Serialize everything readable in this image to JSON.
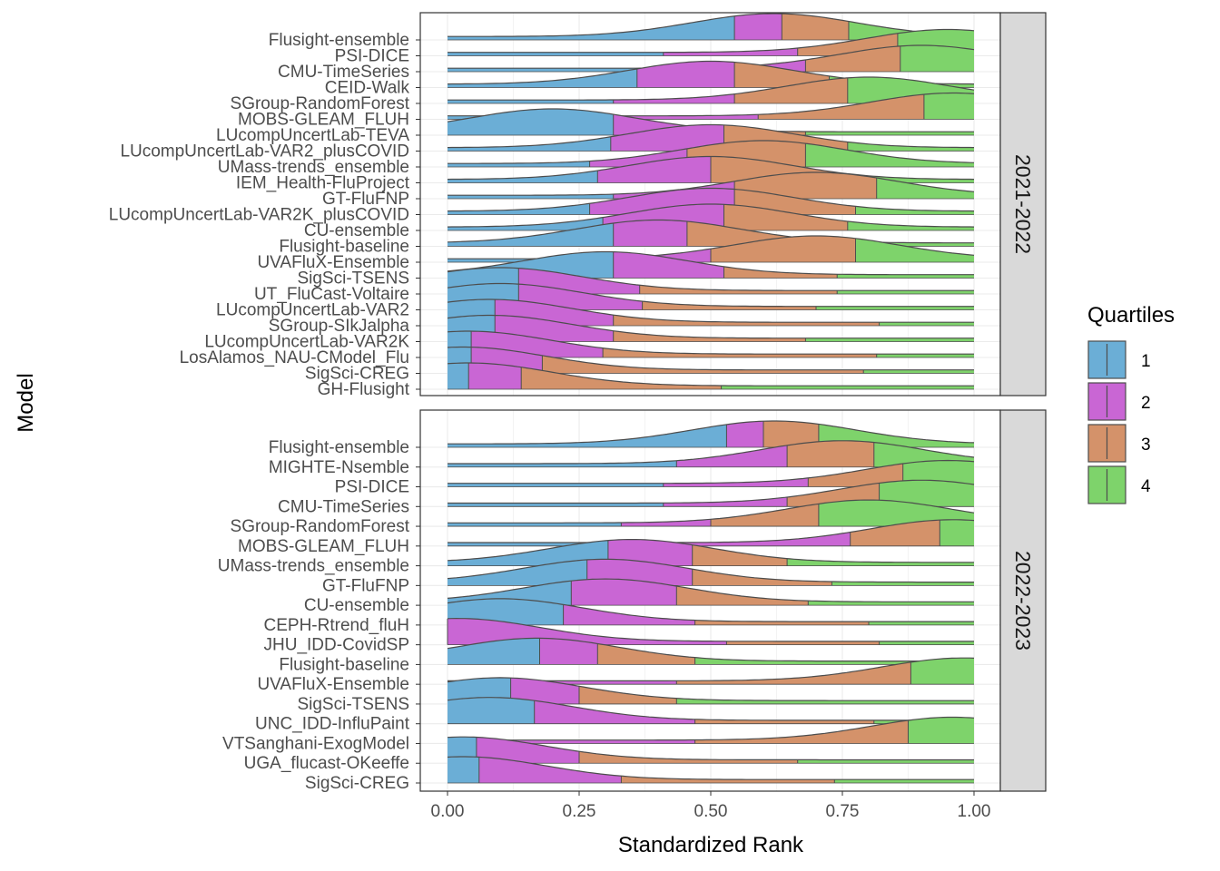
{
  "chart_data": {
    "type": "density-ridgeline",
    "xlabel": "Standardized Rank",
    "ylabel": "Model",
    "xlim": [
      0,
      1
    ],
    "x_ticks": [
      "0.00",
      "0.25",
      "0.50",
      "0.75",
      "1.00"
    ],
    "grid": true,
    "legend": {
      "title": "Quartiles",
      "position": "right",
      "entries": [
        {
          "label": "1",
          "color": "#6baed6"
        },
        {
          "label": "2",
          "color": "#c966d4"
        },
        {
          "label": "3",
          "color": "#d4926a"
        },
        {
          "label": "4",
          "color": "#7ed36b"
        }
      ]
    },
    "panels": [
      {
        "season": "2021-2022",
        "rows": [
          {
            "model": "Flusight-ensemble",
            "mode": 0.62,
            "q": [
              0.545,
              0.635,
              0.762
            ]
          },
          {
            "model": "PSI-DICE",
            "mode": 0.95,
            "q": [
              0.41,
              0.665,
              0.855
            ]
          },
          {
            "model": "CMU-TimeSeries",
            "mode": 0.9,
            "q": [
              0.41,
              0.68,
              0.86
            ]
          },
          {
            "model": "CEID-Walk",
            "mode": 0.5,
            "q": [
              0.36,
              0.545,
              0.725
            ]
          },
          {
            "model": "SGroup-RandomForest",
            "mode": 0.8,
            "q": [
              0.315,
              0.545,
              0.76
            ]
          },
          {
            "model": "MOBS-GLEAM_FLUH",
            "mode": 0.96,
            "q": [
              0.225,
              0.59,
              0.905
            ]
          },
          {
            "model": "LUcompUncertLab-TEVA",
            "mode": 0.2,
            "q": [
              0.315,
              0.5,
              0.68
            ]
          },
          {
            "model": "LUcompUncertLab-VAR2_plusCOVID",
            "mode": 0.5,
            "q": [
              0.31,
              0.525,
              0.76
            ]
          },
          {
            "model": "UMass-trends_ensemble",
            "mode": 0.6,
            "q": [
              0.27,
              0.455,
              0.68
            ]
          },
          {
            "model": "IEM_Health-FluProject",
            "mode": 0.5,
            "q": [
              0.285,
              0.5,
              0.755
            ]
          },
          {
            "model": "GT-FluFNP",
            "mode": 0.7,
            "q": [
              0.315,
              0.545,
              0.815
            ]
          },
          {
            "model": "LUcompUncertLab-VAR2K_plusCOVID",
            "mode": 0.5,
            "q": [
              0.27,
              0.545,
              0.775
            ]
          },
          {
            "model": "CU-ensemble",
            "mode": 0.5,
            "q": [
              0.295,
              0.525,
              0.76
            ]
          },
          {
            "model": "Flusight-baseline",
            "mode": 0.4,
            "q": [
              0.315,
              0.455,
              0.68
            ]
          },
          {
            "model": "UVAFluX-Ensemble",
            "mode": 0.7,
            "q": [
              0.235,
              0.5,
              0.775
            ]
          },
          {
            "model": "SigSci-TSENS",
            "mode": 0.3,
            "q": [
              0.315,
              0.525,
              0.74
            ]
          },
          {
            "model": "UT_FluCast-Voltaire",
            "mode": 0.1,
            "q": [
              0.135,
              0.365,
              0.74
            ]
          },
          {
            "model": "LUcompUncertLab-VAR2",
            "mode": 0.1,
            "q": [
              0.135,
              0.37,
              0.7
            ]
          },
          {
            "model": "SGroup-SIkJalpha",
            "mode": 0.08,
            "q": [
              0.09,
              0.315,
              0.82
            ]
          },
          {
            "model": "LUcompUncertLab-VAR2K",
            "mode": 0.08,
            "q": [
              0.09,
              0.315,
              0.68
            ]
          },
          {
            "model": "LosAlamos_NAU-CModel_Flu",
            "mode": 0.04,
            "q": [
              0.045,
              0.295,
              0.815
            ]
          },
          {
            "model": "SigSci-CREG",
            "mode": 0.03,
            "q": [
              0.045,
              0.18,
              0.79
            ]
          },
          {
            "model": "GH-Flusight",
            "mode": 0.04,
            "q": [
              0.04,
              0.14,
              0.52
            ]
          }
        ]
      },
      {
        "season": "2022-2023",
        "rows": [
          {
            "model": "Flusight-ensemble",
            "mode": 0.62,
            "q": [
              0.53,
              0.6,
              0.705
            ]
          },
          {
            "model": "MIGHTE-Nsemble",
            "mode": 0.75,
            "q": [
              0.435,
              0.645,
              0.81
            ]
          },
          {
            "model": "PSI-DICE",
            "mode": 0.95,
            "q": [
              0.41,
              0.685,
              0.865
            ]
          },
          {
            "model": "CMU-TimeSeries",
            "mode": 0.9,
            "q": [
              0.41,
              0.645,
              0.82
            ]
          },
          {
            "model": "SGroup-RandomForest",
            "mode": 0.8,
            "q": [
              0.33,
              0.5,
              0.705
            ]
          },
          {
            "model": "MOBS-GLEAM_FLUH",
            "mode": 0.96,
            "q": [
              0.4,
              0.765,
              0.935
            ]
          },
          {
            "model": "UMass-trends_ensemble",
            "mode": 0.35,
            "q": [
              0.305,
              0.465,
              0.645
            ]
          },
          {
            "model": "GT-FluFNP",
            "mode": 0.3,
            "q": [
              0.265,
              0.465,
              0.73
            ]
          },
          {
            "model": "CU-ensemble",
            "mode": 0.3,
            "q": [
              0.235,
              0.435,
              0.685
            ]
          },
          {
            "model": "CEPH-Rtrend_fluH",
            "mode": 0.1,
            "q": [
              0.22,
              0.47,
              0.8
            ]
          },
          {
            "model": "JHU_IDD-CovidSP",
            "mode": 0.02,
            "q": [
              0.0,
              0.53,
              0.82
            ]
          },
          {
            "model": "Flusight-baseline",
            "mode": 0.17,
            "q": [
              0.175,
              0.285,
              0.47
            ]
          },
          {
            "model": "UVAFluX-Ensemble",
            "mode": 0.98,
            "q": [
              0.13,
              0.435,
              0.88
            ]
          },
          {
            "model": "SigSci-TSENS",
            "mode": 0.1,
            "q": [
              0.12,
              0.25,
              0.435
            ]
          },
          {
            "model": "UNC_IDD-InfluPaint",
            "mode": 0.08,
            "q": [
              0.165,
              0.47,
              0.81
            ]
          },
          {
            "model": "VTSanghani-ExogModel",
            "mode": 0.96,
            "q": [
              0.13,
              0.47,
              0.875
            ]
          },
          {
            "model": "UGA_flucast-OKeeffe",
            "mode": 0.03,
            "q": [
              0.055,
              0.25,
              0.665
            ]
          },
          {
            "model": "SigSci-CREG",
            "mode": 0.03,
            "q": [
              0.06,
              0.33,
              0.735
            ]
          }
        ]
      }
    ]
  }
}
